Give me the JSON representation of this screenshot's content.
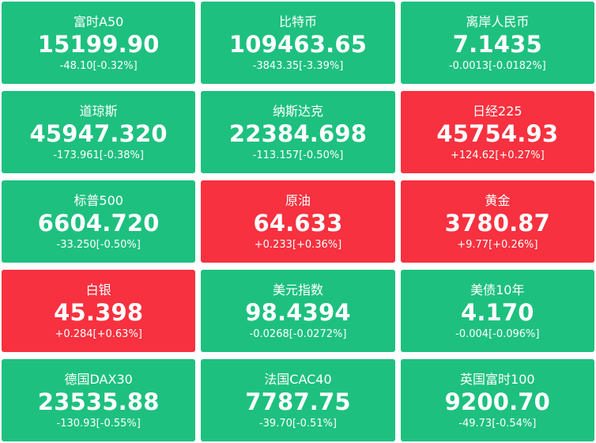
{
  "tiles": [
    {
      "name": "富时A50",
      "price": "15199.90",
      "change": "-48.10[-0.32%]",
      "trend": "down"
    },
    {
      "name": "比特币",
      "price": "109463.65",
      "change": "-3843.35[-3.39%]",
      "trend": "down"
    },
    {
      "name": "离岸人民币",
      "price": "7.1435",
      "change": "-0.0013[-0.0182%]",
      "trend": "down"
    },
    {
      "name": "道琼斯",
      "price": "45947.320",
      "change": "-173.961[-0.38%]",
      "trend": "down"
    },
    {
      "name": "纳斯达克",
      "price": "22384.698",
      "change": "-113.157[-0.50%]",
      "trend": "down"
    },
    {
      "name": "日经225",
      "price": "45754.93",
      "change": "+124.62[+0.27%]",
      "trend": "up"
    },
    {
      "name": "标普500",
      "price": "6604.720",
      "change": "-33.250[-0.50%]",
      "trend": "down"
    },
    {
      "name": "原油",
      "price": "64.633",
      "change": "+0.233[+0.36%]",
      "trend": "up"
    },
    {
      "name": "黄金",
      "price": "3780.87",
      "change": "+9.77[+0.26%]",
      "trend": "up"
    },
    {
      "name": "白银",
      "price": "45.398",
      "change": "+0.284[+0.63%]",
      "trend": "up"
    },
    {
      "name": "美元指数",
      "price": "98.4394",
      "change": "-0.0268[-0.0272%]",
      "trend": "down"
    },
    {
      "name": "美债10年",
      "price": "4.170",
      "change": "-0.004[-0.096%]",
      "trend": "down"
    },
    {
      "name": "德国DAX30",
      "price": "23535.88",
      "change": "-130.93[-0.55%]",
      "trend": "down"
    },
    {
      "name": "法国CAC40",
      "price": "7787.75",
      "change": "-39.70[-0.51%]",
      "trend": "down"
    },
    {
      "name": "英国富时100",
      "price": "9200.70",
      "change": "-49.73[-0.54%]",
      "trend": "down"
    }
  ],
  "colors": {
    "down": "#1ec07f",
    "up": "#f7313f",
    "text": "#ffffff"
  }
}
